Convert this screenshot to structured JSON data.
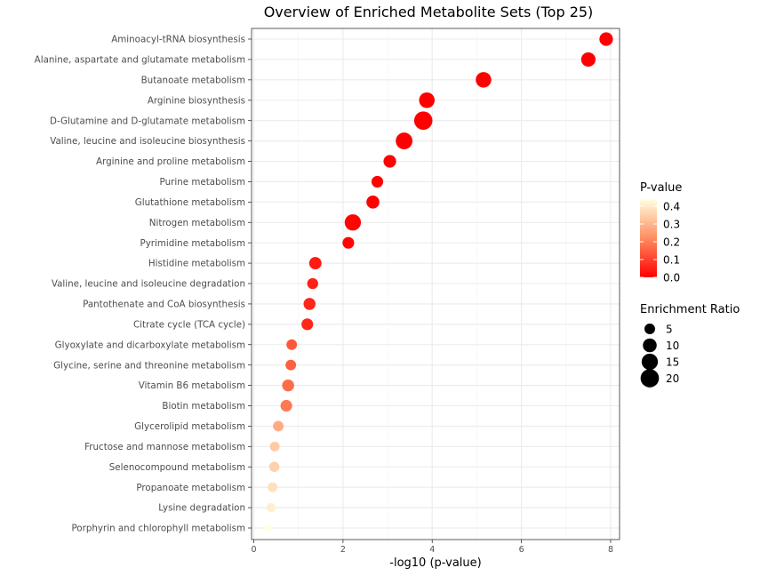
{
  "chart_data": {
    "type": "scatter",
    "title": "Overview of Enriched Metabolite Sets (Top 25)",
    "xlabel": "-log10 (p-value)",
    "ylabel": "",
    "xlim": [
      -0.05,
      8.2
    ],
    "xticks": [
      "0",
      "2",
      "4",
      "6",
      "8"
    ],
    "xtick_values": [
      0,
      2,
      4,
      6,
      8
    ],
    "grid": true,
    "points": [
      {
        "label": "Aminoacyl-tRNA biosynthesis",
        "x": 7.9,
        "ratio": 9.5,
        "p": 0.0
      },
      {
        "label": "Alanine, aspartate and glutamate metabolism",
        "x": 7.5,
        "ratio": 11.0,
        "p": 0.0
      },
      {
        "label": "Butanoate metabolism",
        "x": 5.15,
        "ratio": 13.5,
        "p": 0.0
      },
      {
        "label": "Arginine biosynthesis",
        "x": 3.88,
        "ratio": 13.5,
        "p": 0.0
      },
      {
        "label": "D-Glutamine and D-glutamate metabolism",
        "x": 3.8,
        "ratio": 20.0,
        "p": 0.0
      },
      {
        "label": "Valine, leucine and isoleucine biosynthesis",
        "x": 3.37,
        "ratio": 16.0,
        "p": 0.0
      },
      {
        "label": "Arginine and proline metabolism",
        "x": 3.05,
        "ratio": 8.0,
        "p": 0.001
      },
      {
        "label": "Purine metabolism",
        "x": 2.77,
        "ratio": 6.5,
        "p": 0.002
      },
      {
        "label": "Glutathione metabolism",
        "x": 2.67,
        "ratio": 8.5,
        "p": 0.002
      },
      {
        "label": "Nitrogen metabolism",
        "x": 2.22,
        "ratio": 15.0,
        "p": 0.006
      },
      {
        "label": "Pyrimidine metabolism",
        "x": 2.12,
        "ratio": 6.5,
        "p": 0.008
      },
      {
        "label": "Histidine metabolism",
        "x": 1.38,
        "ratio": 7.5,
        "p": 0.04
      },
      {
        "label": "Valine, leucine and isoleucine degradation",
        "x": 1.32,
        "ratio": 5.5,
        "p": 0.05
      },
      {
        "label": "Pantothenate and CoA biosynthesis",
        "x": 1.25,
        "ratio": 7.0,
        "p": 0.06
      },
      {
        "label": "Citrate cycle (TCA cycle)",
        "x": 1.2,
        "ratio": 6.5,
        "p": 0.06
      },
      {
        "label": "Glyoxylate and dicarboxylate metabolism",
        "x": 0.85,
        "ratio": 5.0,
        "p": 0.14
      },
      {
        "label": "Glycine, serine and threonine metabolism",
        "x": 0.83,
        "ratio": 5.0,
        "p": 0.15
      },
      {
        "label": "Vitamin B6 metabolism",
        "x": 0.77,
        "ratio": 7.0,
        "p": 0.17
      },
      {
        "label": "Biotin metabolism",
        "x": 0.73,
        "ratio": 6.5,
        "p": 0.19
      },
      {
        "label": "Glycerolipid metabolism",
        "x": 0.55,
        "ratio": 5.0,
        "p": 0.28
      },
      {
        "label": "Fructose and mannose metabolism",
        "x": 0.47,
        "ratio": 4.0,
        "p": 0.34
      },
      {
        "label": "Selenocompound metabolism",
        "x": 0.46,
        "ratio": 4.5,
        "p": 0.35
      },
      {
        "label": "Propanoate metabolism",
        "x": 0.42,
        "ratio": 4.0,
        "p": 0.38
      },
      {
        "label": "Lysine degradation",
        "x": 0.39,
        "ratio": 3.5,
        "p": 0.41
      },
      {
        "label": "Porphyrin and chlorophyll metabolism",
        "x": 0.3,
        "ratio": 2.0,
        "p": 0.5
      }
    ],
    "color_legend": {
      "title": "P-value",
      "ticks": [
        "0.4",
        "0.3",
        "0.2",
        "0.1",
        "0.0"
      ],
      "tick_values": [
        0.4,
        0.3,
        0.2,
        0.1,
        0.0
      ],
      "range": [
        0.0,
        0.44
      ],
      "low_color": "#FF0000",
      "mid_color": "#FF8C60",
      "high_color": "#FFFFE0"
    },
    "size_legend": {
      "title": "Enrichment Ratio",
      "items": [
        "5",
        "10",
        "15",
        "20"
      ],
      "item_values": [
        5,
        10,
        15,
        20
      ]
    }
  }
}
